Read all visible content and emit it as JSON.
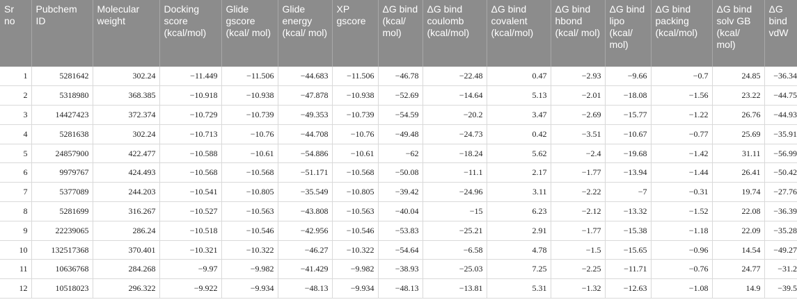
{
  "table": {
    "headers": [
      "Sr no",
      "Pubchem ID",
      "Molecular weight",
      "Docking score (kcal/mol)",
      "Glide gscore (kcal/ mol)",
      "Glide energy (kcal/ mol)",
      "XP gscore",
      "ΔG bind (kcal/ mol)",
      "ΔG bind coulomb (kcal/mol)",
      "ΔG bind covalent (kcal/mol)",
      "ΔG bind hbond (kcal/ mol)",
      "ΔG bind lipo (kcal/ mol)",
      "ΔG bind packing (kcal/mol)",
      "ΔG bind solv GB (kcal/ mol)",
      "ΔG bind vdW"
    ],
    "rows": [
      [
        "1",
        "5281642",
        "302.24",
        "−11.449",
        "−11.506",
        "−44.683",
        "−11.506",
        "−46.78",
        "−22.48",
        "0.47",
        "−2.93",
        "−9.66",
        "−0.7",
        "24.85",
        "−36.34"
      ],
      [
        "2",
        "5318980",
        "368.385",
        "−10.918",
        "−10.938",
        "−47.878",
        "−10.938",
        "−52.69",
        "−14.64",
        "5.13",
        "−2.01",
        "−18.08",
        "−1.56",
        "23.22",
        "−44.75"
      ],
      [
        "3",
        "14427423",
        "372.374",
        "−10.729",
        "−10.739",
        "−49.353",
        "−10.739",
        "−54.59",
        "−20.2",
        "3.47",
        "−2.69",
        "−15.77",
        "−1.22",
        "26.76",
        "−44.93"
      ],
      [
        "4",
        "5281638",
        "302.24",
        "−10.713",
        "−10.76",
        "−44.708",
        "−10.76",
        "−49.48",
        "−24.73",
        "0.42",
        "−3.51",
        "−10.67",
        "−0.77",
        "25.69",
        "−35.91"
      ],
      [
        "5",
        "24857900",
        "422.477",
        "−10.588",
        "−10.61",
        "−54.886",
        "−10.61",
        "−62",
        "−18.24",
        "5.62",
        "−2.4",
        "−19.68",
        "−1.42",
        "31.11",
        "−56.99"
      ],
      [
        "6",
        "9979767",
        "424.493",
        "−10.568",
        "−10.568",
        "−51.171",
        "−10.568",
        "−50.08",
        "−11.1",
        "2.17",
        "−1.77",
        "−13.94",
        "−1.44",
        "26.41",
        "−50.42"
      ],
      [
        "7",
        "5377089",
        "244.203",
        "−10.541",
        "−10.805",
        "−35.549",
        "−10.805",
        "−39.42",
        "−24.96",
        "3.11",
        "−2.22",
        "−7",
        "−0.31",
        "19.74",
        "−27.76"
      ],
      [
        "8",
        "5281699",
        "316.267",
        "−10.527",
        "−10.563",
        "−43.808",
        "−10.563",
        "−40.04",
        "−15",
        "6.23",
        "−2.12",
        "−13.32",
        "−1.52",
        "22.08",
        "−36.39"
      ],
      [
        "9",
        "22239065",
        "286.24",
        "−10.518",
        "−10.546",
        "−42.956",
        "−10.546",
        "−53.83",
        "−25.21",
        "2.91",
        "−1.77",
        "−15.38",
        "−1.18",
        "22.09",
        "−35.28"
      ],
      [
        "10",
        "132517368",
        "370.401",
        "−10.321",
        "−10.322",
        "−46.27",
        "−10.322",
        "−54.64",
        "−6.58",
        "4.78",
        "−1.5",
        "−15.65",
        "−0.96",
        "14.54",
        "−49.27"
      ],
      [
        "11",
        "10636768",
        "284.268",
        "−9.97",
        "−9.982",
        "−41.429",
        "−9.982",
        "−38.93",
        "−25.03",
        "7.25",
        "−2.25",
        "−11.71",
        "−0.76",
        "24.77",
        "−31.2"
      ],
      [
        "12",
        "10518023",
        "296.322",
        "−9.922",
        "−9.934",
        "−48.13",
        "−9.934",
        "−48.13",
        "−13.81",
        "5.31",
        "−1.32",
        "−12.63",
        "−1.08",
        "14.9",
        "−39.5"
      ]
    ]
  }
}
